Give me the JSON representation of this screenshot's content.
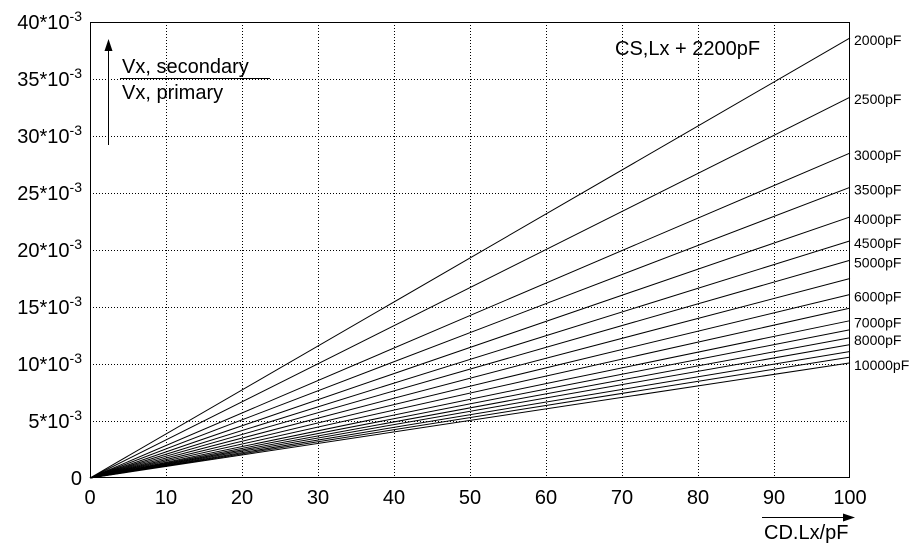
{
  "chart_data": {
    "type": "line",
    "xlabel": "CD.Lx/pF",
    "ylabel": {
      "numerator": "Vx, secondary",
      "denominator": "Vx, primary"
    },
    "annotation": "CS,Lx + 2200pF",
    "xlim": [
      0,
      100
    ],
    "ylim": [
      0,
      0.04
    ],
    "xticks": [
      0,
      10,
      20,
      30,
      40,
      50,
      60,
      70,
      80,
      90,
      100
    ],
    "xtick_labels": [
      "0",
      "10",
      "20",
      "30",
      "40",
      "50",
      "60",
      "70",
      "80",
      "90",
      "100"
    ],
    "yticks": [
      0,
      0.005,
      0.01,
      0.015,
      0.02,
      0.025,
      0.03,
      0.035,
      0.04
    ],
    "ytick_labels": [
      {
        "base": "0"
      },
      {
        "base": "5*10",
        "exp": "-3"
      },
      {
        "base": "10*10",
        "exp": "-3"
      },
      {
        "base": "15*10",
        "exp": "-3"
      },
      {
        "base": "20*10",
        "exp": "-3"
      },
      {
        "base": "25*10",
        "exp": "-3"
      },
      {
        "base": "30*10",
        "exp": "-3"
      },
      {
        "base": "35*10",
        "exp": "-3"
      },
      {
        "base": "40*10",
        "exp": "-3"
      }
    ],
    "grid": true,
    "legend": "right",
    "line_color": "#000000",
    "x": [
      0,
      100
    ],
    "series": [
      {
        "name": "2000pF",
        "values": [
          0,
          0.0386
        ]
      },
      {
        "name": "2500pF",
        "values": [
          0,
          0.0334
        ]
      },
      {
        "name": "3000pF",
        "values": [
          0,
          0.0285
        ]
      },
      {
        "name": "3500pF",
        "values": [
          0,
          0.0255
        ]
      },
      {
        "name": "4000pF",
        "values": [
          0,
          0.0229
        ]
      },
      {
        "name": "4500pF",
        "values": [
          0,
          0.0208
        ]
      },
      {
        "name": "5000pF",
        "values": [
          0,
          0.0191
        ]
      },
      {
        "values": [
          0,
          0.0175
        ]
      },
      {
        "name": "6000pF",
        "values": [
          0,
          0.0161
        ]
      },
      {
        "values": [
          0,
          0.0149
        ]
      },
      {
        "name": "7000pF",
        "values": [
          0,
          0.0138
        ]
      },
      {
        "values": [
          0,
          0.013
        ]
      },
      {
        "name": "8000pF",
        "values": [
          0,
          0.0123
        ]
      },
      {
        "values": [
          0,
          0.0117
        ]
      },
      {
        "values": [
          0,
          0.0111
        ]
      },
      {
        "values": [
          0,
          0.0106
        ]
      },
      {
        "name": "10000pF",
        "values": [
          0,
          0.0101
        ]
      }
    ]
  }
}
